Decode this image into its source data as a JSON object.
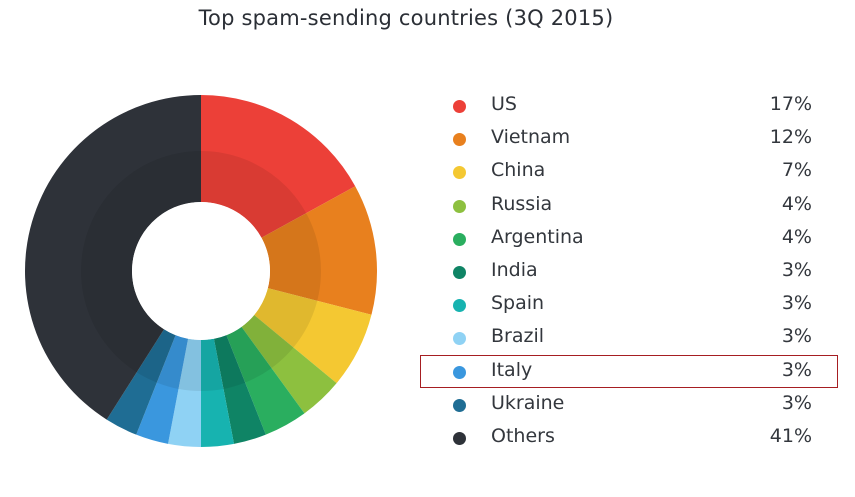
{
  "chart_data": {
    "type": "pie",
    "title": "Top spam-sending countries (3Q 2015)",
    "donut": true,
    "legend_placement": "right",
    "highlighted": "Italy",
    "slices": [
      {
        "label": "US",
        "value": 17,
        "value_text": "17%",
        "color": "#ec4038"
      },
      {
        "label": "Vietnam",
        "value": 12,
        "value_text": "12%",
        "color": "#e8801e"
      },
      {
        "label": "China",
        "value": 7,
        "value_text": "7%",
        "color": "#f4c832"
      },
      {
        "label": "Russia",
        "value": 4,
        "value_text": "4%",
        "color": "#8dc03f"
      },
      {
        "label": "Argentina",
        "value": 4,
        "value_text": "4%",
        "color": "#2aae5f"
      },
      {
        "label": "India",
        "value": 3,
        "value_text": "3%",
        "color": "#0f8465"
      },
      {
        "label": "Spain",
        "value": 3,
        "value_text": "3%",
        "color": "#17b3b0"
      },
      {
        "label": "Brazil",
        "value": 3,
        "value_text": "3%",
        "color": "#8fd2f4"
      },
      {
        "label": "Italy",
        "value": 3,
        "value_text": "3%",
        "color": "#3a97de"
      },
      {
        "label": "Ukraine",
        "value": 3,
        "value_text": "3%",
        "color": "#1f6d94"
      },
      {
        "label": "Others",
        "value": 41,
        "value_text": "41%",
        "color": "#2e3239"
      }
    ]
  }
}
